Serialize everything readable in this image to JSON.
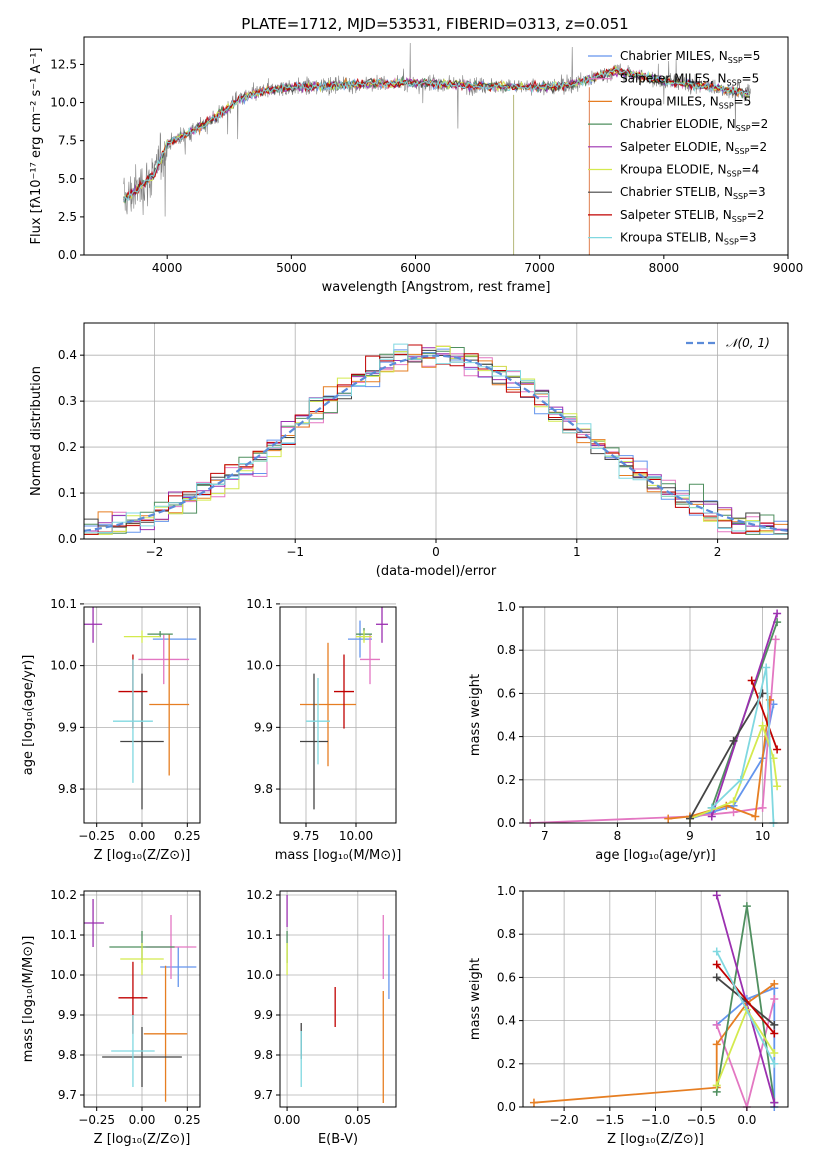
{
  "figure": {
    "title": "PLATE=1712, MJD=53531, FIBERID=0313, z=0.051"
  },
  "models": [
    {
      "name": "Chabrier MILES",
      "nssp": "5",
      "color": "#6495ed"
    },
    {
      "name": "Salpeter MILES",
      "nssp": "5",
      "color": "#e377c2"
    },
    {
      "name": "Kroupa MILES",
      "nssp": "5",
      "color": "#e67e22"
    },
    {
      "name": "Chabrier ELODIE",
      "nssp": "2",
      "color": "#4f8f5f"
    },
    {
      "name": "Salpeter ELODIE",
      "nssp": "2",
      "color": "#9b30b0"
    },
    {
      "name": "Kroupa ELODIE",
      "nssp": "4",
      "color": "#d4ea4e"
    },
    {
      "name": "Chabrier STELIB",
      "nssp": "3",
      "color": "#444444"
    },
    {
      "name": "Salpeter STELIB",
      "nssp": "2",
      "color": "#c00000"
    },
    {
      "name": "Kroupa STELIB",
      "nssp": "3",
      "color": "#80d8e0"
    }
  ],
  "chart_data": [
    {
      "id": "spectrum",
      "type": "line",
      "xlabel": "wavelength [Angstrom, rest frame]",
      "ylabel": "Flux [fλ10⁻¹⁷ erg cm⁻² s⁻¹ A⁻¹]",
      "xlim": [
        3330,
        9000
      ],
      "ylim": [
        0,
        14.3
      ],
      "xticks": [
        "4000",
        "5000",
        "6000",
        "7000",
        "8000",
        "9000"
      ],
      "yticks": [
        "0.0",
        "2.5",
        "5.0",
        "7.5",
        "10.0",
        "12.5"
      ],
      "data_color": "#808080",
      "legend_loc": "right",
      "continuum": {
        "x": [
          3650,
          3800,
          3900,
          4000,
          4200,
          4400,
          4600,
          4800,
          5000,
          5500,
          6000,
          6500,
          7000,
          7200,
          7400,
          7600,
          8000,
          8400,
          8700
        ],
        "y": [
          3.6,
          4.6,
          5.3,
          7.3,
          8.1,
          9.1,
          10.3,
          10.8,
          11.0,
          11.2,
          11.3,
          11.1,
          11.0,
          11.1,
          11.5,
          12.1,
          11.4,
          11.0,
          10.6
        ]
      }
    },
    {
      "id": "residuals",
      "type": "step",
      "xlabel": "(data-model)/error",
      "ylabel": "Normed distribution",
      "xlim": [
        -2.5,
        2.5
      ],
      "ylim": [
        0,
        0.47
      ],
      "xticks": [
        "−2",
        "−1",
        "0",
        "1",
        "2"
      ],
      "yticks": [
        "0.0",
        "0.1",
        "0.2",
        "0.3",
        "0.4"
      ],
      "grid": true,
      "legend": {
        "label": "𝒩(0, 1)",
        "loc": "upper-right",
        "color": "#5b8bd9"
      },
      "bin_width": 0.1
    },
    {
      "id": "age-vs-Z",
      "type": "errorbar",
      "xlabel": "Z [log₁₀(Z/Z⊙)]",
      "ylabel": "age  [log₁₀(age/yr)]",
      "xlim": [
        -0.32,
        0.32
      ],
      "ylim": [
        9.745,
        10.095
      ],
      "xticks": [
        "−0.25",
        "0.00",
        "0.25"
      ],
      "xtick_values": [
        -0.25,
        0,
        0.25
      ],
      "yticks": [
        "9.8",
        "9.9",
        "10.0",
        "10.1"
      ],
      "ytick_values": [
        9.8,
        9.9,
        10.0,
        10.1
      ],
      "grid": true,
      "points": [
        {
          "model": 0,
          "x": 0.18,
          "y": 10.043,
          "ex": 0.12,
          "ey": 0
        },
        {
          "model": 1,
          "x": 0.12,
          "y": 10.01,
          "ex": 0.14,
          "ey": 0.04
        },
        {
          "model": 2,
          "x": 0.15,
          "y": 9.937,
          "ex": 0.11,
          "ey": 0.115
        },
        {
          "model": 3,
          "x": 0.1,
          "y": 10.051,
          "ex": 0.07,
          "ey": 0.005
        },
        {
          "model": 4,
          "x": -0.27,
          "y": 10.067,
          "ex": 0.05,
          "ey": 0.03
        },
        {
          "model": 5,
          "x": 0.0,
          "y": 10.047,
          "ex": 0.1,
          "ey": 0.01
        },
        {
          "model": 6,
          "x": 0.0,
          "y": 9.877,
          "ex": 0.12,
          "ey": 0.11
        },
        {
          "model": 7,
          "x": -0.05,
          "y": 9.958,
          "ex": 0.08,
          "ey": 0.06
        },
        {
          "model": 8,
          "x": -0.05,
          "y": 9.91,
          "ex": 0.11,
          "ey": 0.1
        }
      ]
    },
    {
      "id": "age-vs-mass",
      "type": "errorbar",
      "xlabel": "mass [log₁₀(M/M⊙)]",
      "ylabel": "",
      "xlim": [
        9.62,
        10.2
      ],
      "ylim": [
        9.745,
        10.095
      ],
      "xticks": [
        "9.75",
        "10.00"
      ],
      "xtick_values": [
        9.75,
        10.0
      ],
      "yticks": [
        "9.8",
        "9.9",
        "10.0",
        "10.1"
      ],
      "ytick_values": [
        9.8,
        9.9,
        10.0,
        10.1
      ],
      "grid": true,
      "points": [
        {
          "model": 0,
          "x": 10.02,
          "y": 10.043,
          "ex": 0.06,
          "ey": 0.03
        },
        {
          "model": 1,
          "x": 10.07,
          "y": 10.01,
          "ex": 0.05,
          "ey": 0.04
        },
        {
          "model": 2,
          "x": 9.86,
          "y": 9.937,
          "ex": 0.14,
          "ey": 0.1
        },
        {
          "model": 3,
          "x": 10.04,
          "y": 10.051,
          "ex": 0.04,
          "ey": 0.01
        },
        {
          "model": 4,
          "x": 10.13,
          "y": 10.067,
          "ex": 0.03,
          "ey": 0.03
        },
        {
          "model": 5,
          "x": 10.04,
          "y": 10.047,
          "ex": 0.04,
          "ey": 0.01
        },
        {
          "model": 6,
          "x": 9.79,
          "y": 9.877,
          "ex": 0.07,
          "ey": 0.11
        },
        {
          "model": 7,
          "x": 9.94,
          "y": 9.958,
          "ex": 0.05,
          "ey": 0.06
        },
        {
          "model": 8,
          "x": 9.81,
          "y": 9.91,
          "ex": 0.06,
          "ey": 0.07
        }
      ]
    },
    {
      "id": "weight-vs-age",
      "type": "line",
      "xlabel": "age  [log₁₀(age/yr)]",
      "ylabel": "mass weight",
      "xlim": [
        6.7,
        10.35
      ],
      "ylim": [
        0,
        1.0
      ],
      "xticks": [
        "7",
        "8",
        "9",
        "10"
      ],
      "xtick_values": [
        7,
        8,
        9,
        10
      ],
      "yticks": [
        "0.0",
        "0.2",
        "0.4",
        "0.6",
        "0.8",
        "1.0"
      ],
      "ytick_values": [
        0,
        0.2,
        0.4,
        0.6,
        0.8,
        1.0
      ],
      "grid": true,
      "series": [
        {
          "model": 0,
          "x": [
            9.0,
            9.3,
            9.6,
            10.0,
            10.15
          ],
          "y": [
            0.02,
            0.05,
            0.08,
            0.3,
            0.55
          ]
        },
        {
          "model": 1,
          "x": [
            6.8,
            9.0,
            9.6,
            10.0,
            10.18
          ],
          "y": [
            0.0,
            0.03,
            0.05,
            0.07,
            0.85
          ]
        },
        {
          "model": 2,
          "x": [
            8.7,
            9.0,
            9.5,
            9.9,
            10.1
          ],
          "y": [
            0.02,
            0.03,
            0.08,
            0.03,
            0.57
          ]
        },
        {
          "model": 3,
          "x": [
            9.3,
            10.2
          ],
          "y": [
            0.07,
            0.93
          ]
        },
        {
          "model": 4,
          "x": [
            9.3,
            10.2
          ],
          "y": [
            0.03,
            0.97
          ]
        },
        {
          "model": 5,
          "x": [
            9.0,
            9.6,
            10.0,
            10.15,
            10.2
          ],
          "y": [
            0.02,
            0.1,
            0.45,
            0.3,
            0.17
          ]
        },
        {
          "model": 6,
          "x": [
            9.0,
            9.6,
            10.0
          ],
          "y": [
            0.02,
            0.38,
            0.6
          ]
        },
        {
          "model": 7,
          "x": [
            9.85,
            10.2
          ],
          "y": [
            0.66,
            0.34
          ]
        },
        {
          "model": 8,
          "x": [
            9.3,
            9.7,
            10.05,
            10.15
          ],
          "y": [
            0.07,
            0.2,
            0.72,
            0.0
          ]
        }
      ]
    },
    {
      "id": "mass-vs-Z",
      "type": "errorbar",
      "xlabel": "Z [log₁₀(Z/Z⊙)]",
      "ylabel": "mass [log₁₀(M/M⊙)]",
      "xlim": [
        -0.32,
        0.32
      ],
      "ylim": [
        9.67,
        10.21
      ],
      "xticks": [
        "−0.25",
        "0.00",
        "0.25"
      ],
      "xtick_values": [
        -0.25,
        0,
        0.25
      ],
      "yticks": [
        "9.7",
        "9.8",
        "9.9",
        "10.0",
        "10.1",
        "10.2"
      ],
      "ytick_values": [
        9.7,
        9.8,
        9.9,
        10.0,
        10.1,
        10.2
      ],
      "grid": true,
      "points": [
        {
          "model": 0,
          "x": 0.2,
          "y": 10.02,
          "ex": 0.1,
          "ey": 0.05
        },
        {
          "model": 1,
          "x": 0.16,
          "y": 10.07,
          "ex": 0.14,
          "ey": 0.08
        },
        {
          "model": 2,
          "x": 0.13,
          "y": 9.853,
          "ex": 0.12,
          "ey": 0.17
        },
        {
          "model": 3,
          "x": 0.0,
          "y": 10.07,
          "ex": 0.18,
          "ey": 0.04
        },
        {
          "model": 4,
          "x": -0.27,
          "y": 10.13,
          "ex": 0.06,
          "ey": 0.06
        },
        {
          "model": 5,
          "x": 0.0,
          "y": 10.04,
          "ex": 0.12,
          "ey": 0.04
        },
        {
          "model": 6,
          "x": 0.0,
          "y": 9.795,
          "ex": 0.22,
          "ey": 0.075
        },
        {
          "model": 7,
          "x": -0.05,
          "y": 9.943,
          "ex": 0.08,
          "ey": 0.09
        },
        {
          "model": 8,
          "x": -0.05,
          "y": 9.81,
          "ex": 0.12,
          "ey": 0.09
        }
      ]
    },
    {
      "id": "mass-vs-EBV",
      "type": "errorbar",
      "xlabel": "E(B-V)",
      "ylabel": "",
      "xlim": [
        -0.005,
        0.077
      ],
      "ylim": [
        9.67,
        10.21
      ],
      "xticks": [
        "0.00",
        "0.05"
      ],
      "xtick_values": [
        0.0,
        0.05
      ],
      "yticks": [
        "9.7",
        "9.8",
        "9.9",
        "10.0",
        "10.1",
        "10.2"
      ],
      "ytick_values": [
        9.7,
        9.8,
        9.9,
        10.0,
        10.1,
        10.2
      ],
      "grid": true,
      "points": [
        {
          "model": 0,
          "x": 0.072,
          "y": 10.02,
          "ex": 0,
          "ey": 0.08
        },
        {
          "model": 1,
          "x": 0.068,
          "y": 10.07,
          "ex": 0,
          "ey": 0.08
        },
        {
          "model": 2,
          "x": 0.068,
          "y": 9.82,
          "ex": 0,
          "ey": 0.14
        },
        {
          "model": 3,
          "x": 0.0,
          "y": 10.07,
          "ex": 0,
          "ey": 0.04
        },
        {
          "model": 4,
          "x": 0.0,
          "y": 10.16,
          "ex": 0,
          "ey": 0.04
        },
        {
          "model": 5,
          "x": 0.0,
          "y": 10.04,
          "ex": 0,
          "ey": 0.04
        },
        {
          "model": 6,
          "x": 0.01,
          "y": 9.835,
          "ex": 0,
          "ey": 0.045
        },
        {
          "model": 7,
          "x": 0.034,
          "y": 9.92,
          "ex": 0,
          "ey": 0.05
        },
        {
          "model": 8,
          "x": 0.01,
          "y": 9.79,
          "ex": 0,
          "ey": 0.07
        }
      ]
    },
    {
      "id": "weight-vs-Z",
      "type": "line",
      "xlabel": "Z [log₁₀(Z/Z⊙)]",
      "ylabel": "mass weight",
      "xlim": [
        -2.45,
        0.45
      ],
      "ylim": [
        0,
        1.0
      ],
      "xticks": [
        "−2.0",
        "−1.5",
        "−1.0",
        "−0.5",
        "0.0"
      ],
      "xtick_values": [
        -2.0,
        -1.5,
        -1.0,
        -0.5,
        0.0
      ],
      "yticks": [
        "0.0",
        "0.2",
        "0.4",
        "0.6",
        "0.8",
        "1.0"
      ],
      "ytick_values": [
        0,
        0.2,
        0.4,
        0.6,
        0.8,
        1.0
      ],
      "grid": true,
      "series": [
        {
          "model": 0,
          "x": [
            -0.33,
            0.0,
            0.3,
            0.3
          ],
          "y": [
            0.38,
            0.5,
            0.55,
            0.0
          ]
        },
        {
          "model": 1,
          "x": [
            -0.33,
            0.0,
            0.3
          ],
          "y": [
            0.38,
            0.0,
            0.5
          ]
        },
        {
          "model": 2,
          "x": [
            -2.33,
            -0.33,
            -0.33,
            0.0,
            0.3
          ],
          "y": [
            0.02,
            0.09,
            0.29,
            0.48,
            0.57
          ]
        },
        {
          "model": 3,
          "x": [
            -0.33,
            0.0,
            0.3
          ],
          "y": [
            0.07,
            0.93,
            0.02
          ]
        },
        {
          "model": 4,
          "x": [
            -0.33,
            0.3
          ],
          "y": [
            0.98,
            0.02
          ]
        },
        {
          "model": 5,
          "x": [
            -0.33,
            0.0,
            0.3
          ],
          "y": [
            0.1,
            0.45,
            0.25
          ]
        },
        {
          "model": 6,
          "x": [
            -0.33,
            0.3
          ],
          "y": [
            0.6,
            0.38
          ]
        },
        {
          "model": 7,
          "x": [
            -0.33,
            0.3
          ],
          "y": [
            0.66,
            0.34
          ]
        },
        {
          "model": 8,
          "x": [
            -0.33,
            0.3
          ],
          "y": [
            0.72,
            0.2
          ]
        }
      ]
    }
  ]
}
